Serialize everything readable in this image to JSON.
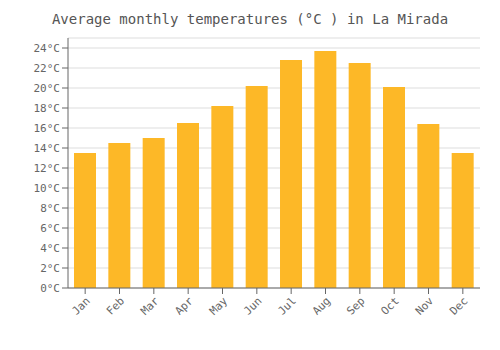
{
  "chart_data": {
    "type": "bar",
    "title": "Average monthly temperatures (°C ) in La Mirada",
    "categories": [
      "Jan",
      "Feb",
      "Mar",
      "Apr",
      "May",
      "Jun",
      "Jul",
      "Aug",
      "Sep",
      "Oct",
      "Nov",
      "Dec"
    ],
    "values": [
      13.5,
      14.5,
      15.0,
      16.5,
      18.2,
      20.2,
      22.8,
      23.7,
      22.5,
      20.1,
      16.4,
      13.5
    ],
    "color": "#FDB827",
    "ylim": [
      0,
      25
    ],
    "yticks": [
      {
        "value": 0,
        "label": "0°C"
      },
      {
        "value": 2,
        "label": "2°C"
      },
      {
        "value": 4,
        "label": "4°C"
      },
      {
        "value": 6,
        "label": "6°C"
      },
      {
        "value": 8,
        "label": "8°C"
      },
      {
        "value": 10,
        "label": "10°C"
      },
      {
        "value": 12,
        "label": "12°C"
      },
      {
        "value": 14,
        "label": "14°C"
      },
      {
        "value": 16,
        "label": "16°C"
      },
      {
        "value": 18,
        "label": "18°C"
      },
      {
        "value": 20,
        "label": "20°C"
      },
      {
        "value": 22,
        "label": "22°C"
      },
      {
        "value": 24,
        "label": "24°C"
      }
    ],
    "grid": true
  }
}
